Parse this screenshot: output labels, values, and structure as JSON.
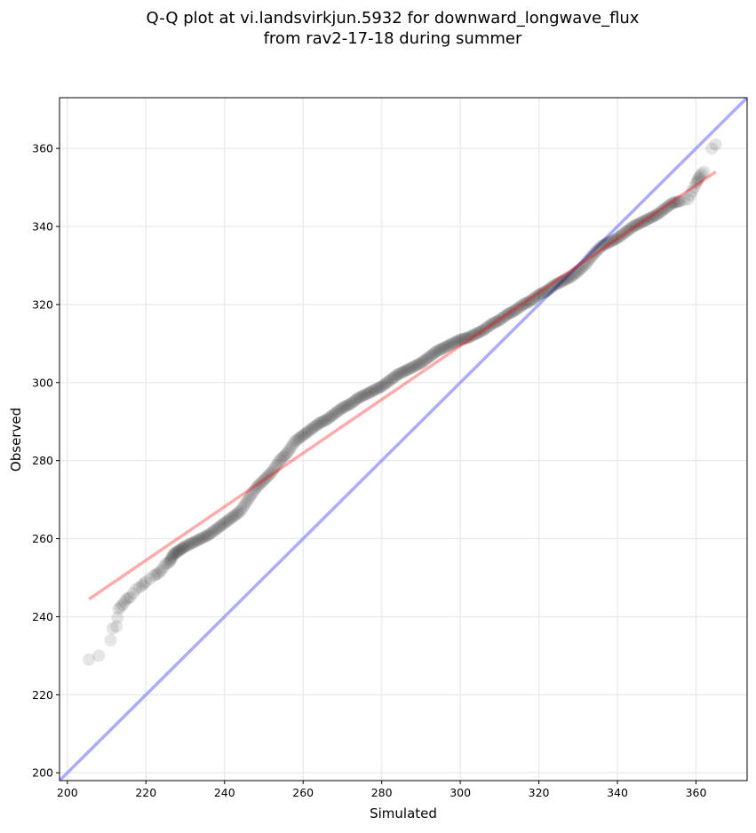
{
  "chart_data": {
    "type": "scatter",
    "title_line1": "Q-Q plot at vi.landsvirkjun.5932 for downward_longwave_flux",
    "title_line2": "from rav2-17-18 during summer",
    "xlabel": "Simulated",
    "ylabel": "Observed",
    "xlim": [
      198,
      373
    ],
    "ylim": [
      198,
      373
    ],
    "xticks": [
      200,
      220,
      240,
      260,
      280,
      300,
      320,
      340,
      360
    ],
    "yticks": [
      200,
      220,
      240,
      260,
      280,
      300,
      320,
      340,
      360
    ],
    "grid": true,
    "point_color": "#000000",
    "fit_line": {
      "color": "#ff8080",
      "x": [
        205.5,
        365
      ],
      "y": [
        244.5,
        354
      ]
    },
    "identity_line": {
      "color": "#7f7fff",
      "x": [
        198,
        373
      ],
      "y": [
        198,
        373
      ]
    },
    "points": [
      [
        205.5,
        229
      ],
      [
        208,
        230
      ],
      [
        211,
        234
      ],
      [
        211.5,
        237
      ],
      [
        212.5,
        237.5
      ],
      [
        213,
        242
      ],
      [
        214,
        243
      ],
      [
        215,
        244.5
      ],
      [
        216,
        245
      ],
      [
        217.5,
        247
      ],
      [
        219,
        248
      ],
      [
        220,
        249
      ],
      [
        222,
        250.5
      ],
      [
        223,
        251
      ],
      [
        224,
        252
      ],
      [
        225,
        253.5
      ],
      [
        226,
        254
      ],
      [
        227,
        256
      ],
      [
        228.5,
        257
      ],
      [
        230,
        258
      ],
      [
        232,
        259
      ],
      [
        234,
        260
      ],
      [
        236,
        261
      ],
      [
        238,
        262.5
      ],
      [
        240,
        264
      ],
      [
        242,
        265.5
      ],
      [
        244,
        267
      ],
      [
        246,
        270
      ],
      [
        248,
        273
      ],
      [
        250,
        275
      ],
      [
        252,
        277
      ],
      [
        254,
        280
      ],
      [
        256,
        282
      ],
      [
        258,
        285
      ],
      [
        260,
        286.5
      ],
      [
        262,
        288
      ],
      [
        264,
        289.5
      ],
      [
        266,
        290.5
      ],
      [
        268,
        292
      ],
      [
        270,
        293.5
      ],
      [
        272,
        294.5
      ],
      [
        274,
        296
      ],
      [
        276,
        297
      ],
      [
        278,
        298
      ],
      [
        280,
        299
      ],
      [
        282,
        300.5
      ],
      [
        284,
        302
      ],
      [
        286,
        303
      ],
      [
        288,
        304
      ],
      [
        290,
        305
      ],
      [
        292,
        306.5
      ],
      [
        294,
        308
      ],
      [
        296,
        309
      ],
      [
        298,
        310
      ],
      [
        300,
        311
      ],
      [
        302,
        311.5
      ],
      [
        304,
        312.5
      ],
      [
        306,
        313.5
      ],
      [
        308,
        315
      ],
      [
        310,
        316
      ],
      [
        312,
        317.5
      ],
      [
        314,
        318.5
      ],
      [
        316,
        320
      ],
      [
        318,
        321
      ],
      [
        320,
        322.5
      ],
      [
        322,
        323.5
      ],
      [
        324,
        325
      ],
      [
        326,
        326
      ],
      [
        328,
        327
      ],
      [
        330,
        328.5
      ],
      [
        332,
        330.5
      ],
      [
        334,
        333
      ],
      [
        336,
        335
      ],
      [
        338,
        336
      ],
      [
        340,
        337
      ],
      [
        342,
        338.5
      ],
      [
        344,
        340
      ],
      [
        346,
        341
      ],
      [
        348,
        342
      ],
      [
        350,
        343
      ],
      [
        352,
        344.5
      ],
      [
        354,
        346
      ],
      [
        356,
        346.5
      ],
      [
        358,
        347
      ],
      [
        359,
        349
      ],
      [
        360,
        351
      ],
      [
        360.5,
        352
      ],
      [
        361,
        353
      ],
      [
        362,
        354
      ],
      [
        364,
        360
      ],
      [
        365,
        361
      ]
    ]
  }
}
